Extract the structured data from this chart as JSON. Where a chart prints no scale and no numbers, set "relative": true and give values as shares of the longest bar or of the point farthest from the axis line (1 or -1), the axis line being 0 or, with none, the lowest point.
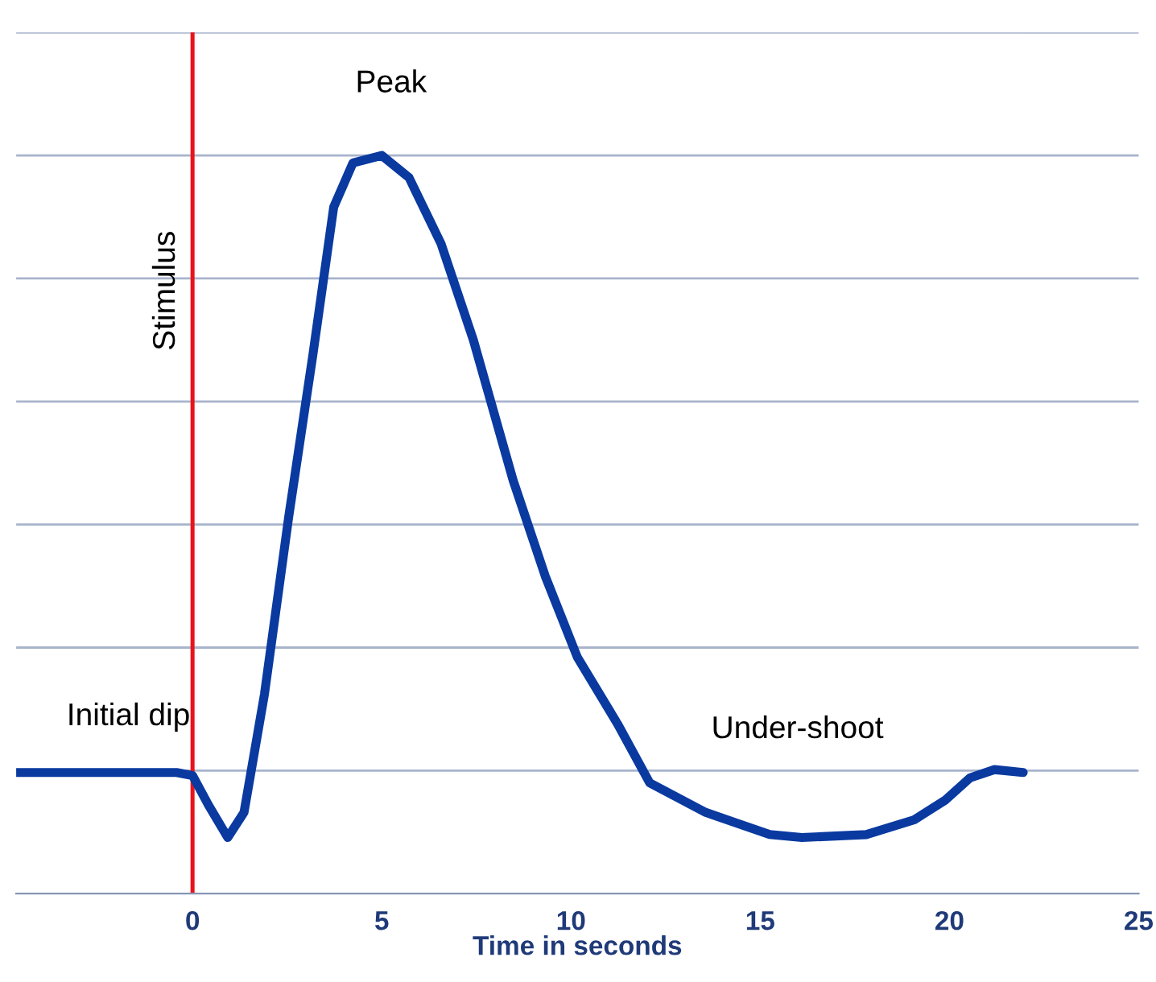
{
  "chart_data": {
    "type": "line",
    "relative": true,
    "xlabel": "Time in seconds",
    "xlim": [
      -4.66,
      25
    ],
    "xticks": [
      0,
      5,
      10,
      15,
      20,
      25
    ],
    "grid": "y",
    "tick_labels": "x",
    "line_style": "solid",
    "marker": "none",
    "x": [
      -4.66,
      -0.42,
      0,
      0.42,
      0.93,
      1.36,
      1.9,
      2.54,
      3.18,
      3.73,
      4.24,
      5.0,
      5.72,
      6.57,
      7.42,
      8.47,
      9.32,
      10.17,
      11.23,
      12.08,
      13.56,
      15.25,
      16.1,
      17.8,
      19.07,
      19.9,
      20.55,
      21.19,
      21.95
    ],
    "series": [
      {
        "color": "#0a3aa0",
        "values": [
          0.164,
          0.164,
          0.16,
          0.12,
          0.076,
          0.11,
          0.27,
          0.51,
          0.73,
          0.93,
          0.99,
          1.0,
          0.97,
          0.88,
          0.75,
          0.56,
          0.43,
          0.32,
          0.23,
          0.15,
          0.11,
          0.08,
          0.076,
          0.08,
          0.1,
          0.127,
          0.157,
          0.168,
          0.164
        ]
      }
    ],
    "ref_lines": [
      {
        "axis": "x",
        "value": 0,
        "label": "Stimulus",
        "color": "#e8141c",
        "line_style": "solid"
      }
    ],
    "annotations": [
      "Peak",
      "Initial dip",
      "Under-shoot"
    ]
  }
}
